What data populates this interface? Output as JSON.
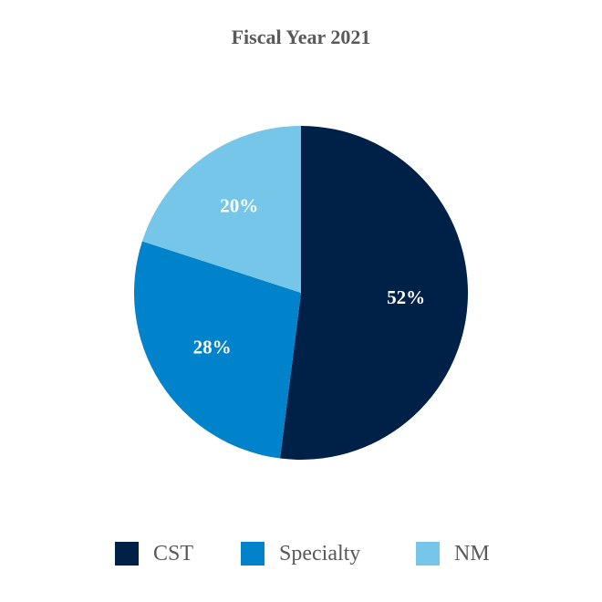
{
  "chart_data": {
    "type": "pie",
    "title": "Fiscal Year 2021",
    "slices": [
      {
        "name": "CST",
        "value": 52,
        "label": "52%",
        "color": "#002147"
      },
      {
        "name": "Specialty",
        "value": 28,
        "label": "28%",
        "color": "#0083CA"
      },
      {
        "name": "NM",
        "value": 20,
        "label": "20%",
        "color": "#75C6E8"
      }
    ],
    "legend_position": "bottom"
  }
}
